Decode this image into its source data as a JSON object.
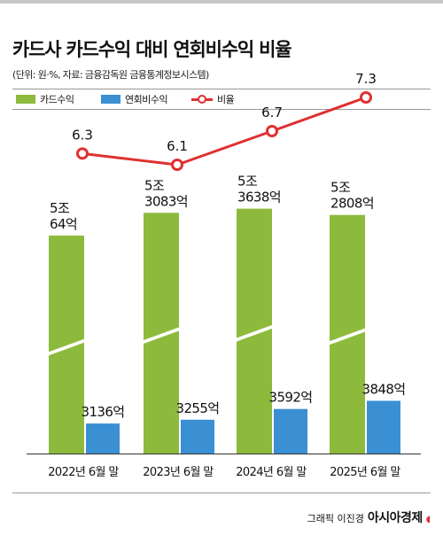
{
  "header": {
    "title": "카드사 카드수익 대비 연회비수익 비율",
    "subtitle": "(단위: 원·%, 자료: 금융감독원 금융통계정보시스템)"
  },
  "legend": {
    "card": "카드수익",
    "fee": "연회비수익",
    "ratio": "비율"
  },
  "colors": {
    "card": "#8dba3c",
    "fee": "#3b8fd3",
    "ratio": "#e03030"
  },
  "chart_data": {
    "type": "bar",
    "categories": [
      "2022년 6월 말",
      "2023년 6월 말",
      "2024년 6월 말",
      "2025년 6월 말"
    ],
    "series": [
      {
        "name": "카드수익",
        "values": [
          50064,
          53083,
          53638,
          52808
        ],
        "labels": [
          "5조\n64억",
          "5조\n3083억",
          "5조\n3638억",
          "5조\n2808억"
        ]
      },
      {
        "name": "연회비수익",
        "values": [
          3136,
          3255,
          3592,
          3848
        ],
        "labels": [
          "3136억",
          "3255억",
          "3592억",
          "3848억"
        ]
      },
      {
        "name": "비율",
        "type": "line",
        "values": [
          6.3,
          6.1,
          6.7,
          7.3
        ],
        "labels": [
          "6.3",
          "6.1",
          "6.7",
          "7.3"
        ]
      }
    ],
    "broken_axis": true,
    "legend_position": "top"
  },
  "credit": {
    "designer": "그래픽 이진경",
    "brand": "아시아경제"
  }
}
